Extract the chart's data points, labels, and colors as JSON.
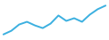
{
  "x": [
    0,
    1,
    2,
    3,
    4,
    5,
    6,
    7,
    8,
    9,
    10,
    11,
    12,
    13
  ],
  "y": [
    2.0,
    4.0,
    7.5,
    9.0,
    7.0,
    5.5,
    8.0,
    12.5,
    9.5,
    11.0,
    9.0,
    13.0,
    16.0,
    18.0
  ],
  "line_color": "#3cb0e0",
  "line_width": 1.4,
  "background_color": "#ffffff",
  "ylim_min": 0.0,
  "ylim_max": 20.0,
  "xlim_min": -0.3,
  "xlim_max": 13.3
}
